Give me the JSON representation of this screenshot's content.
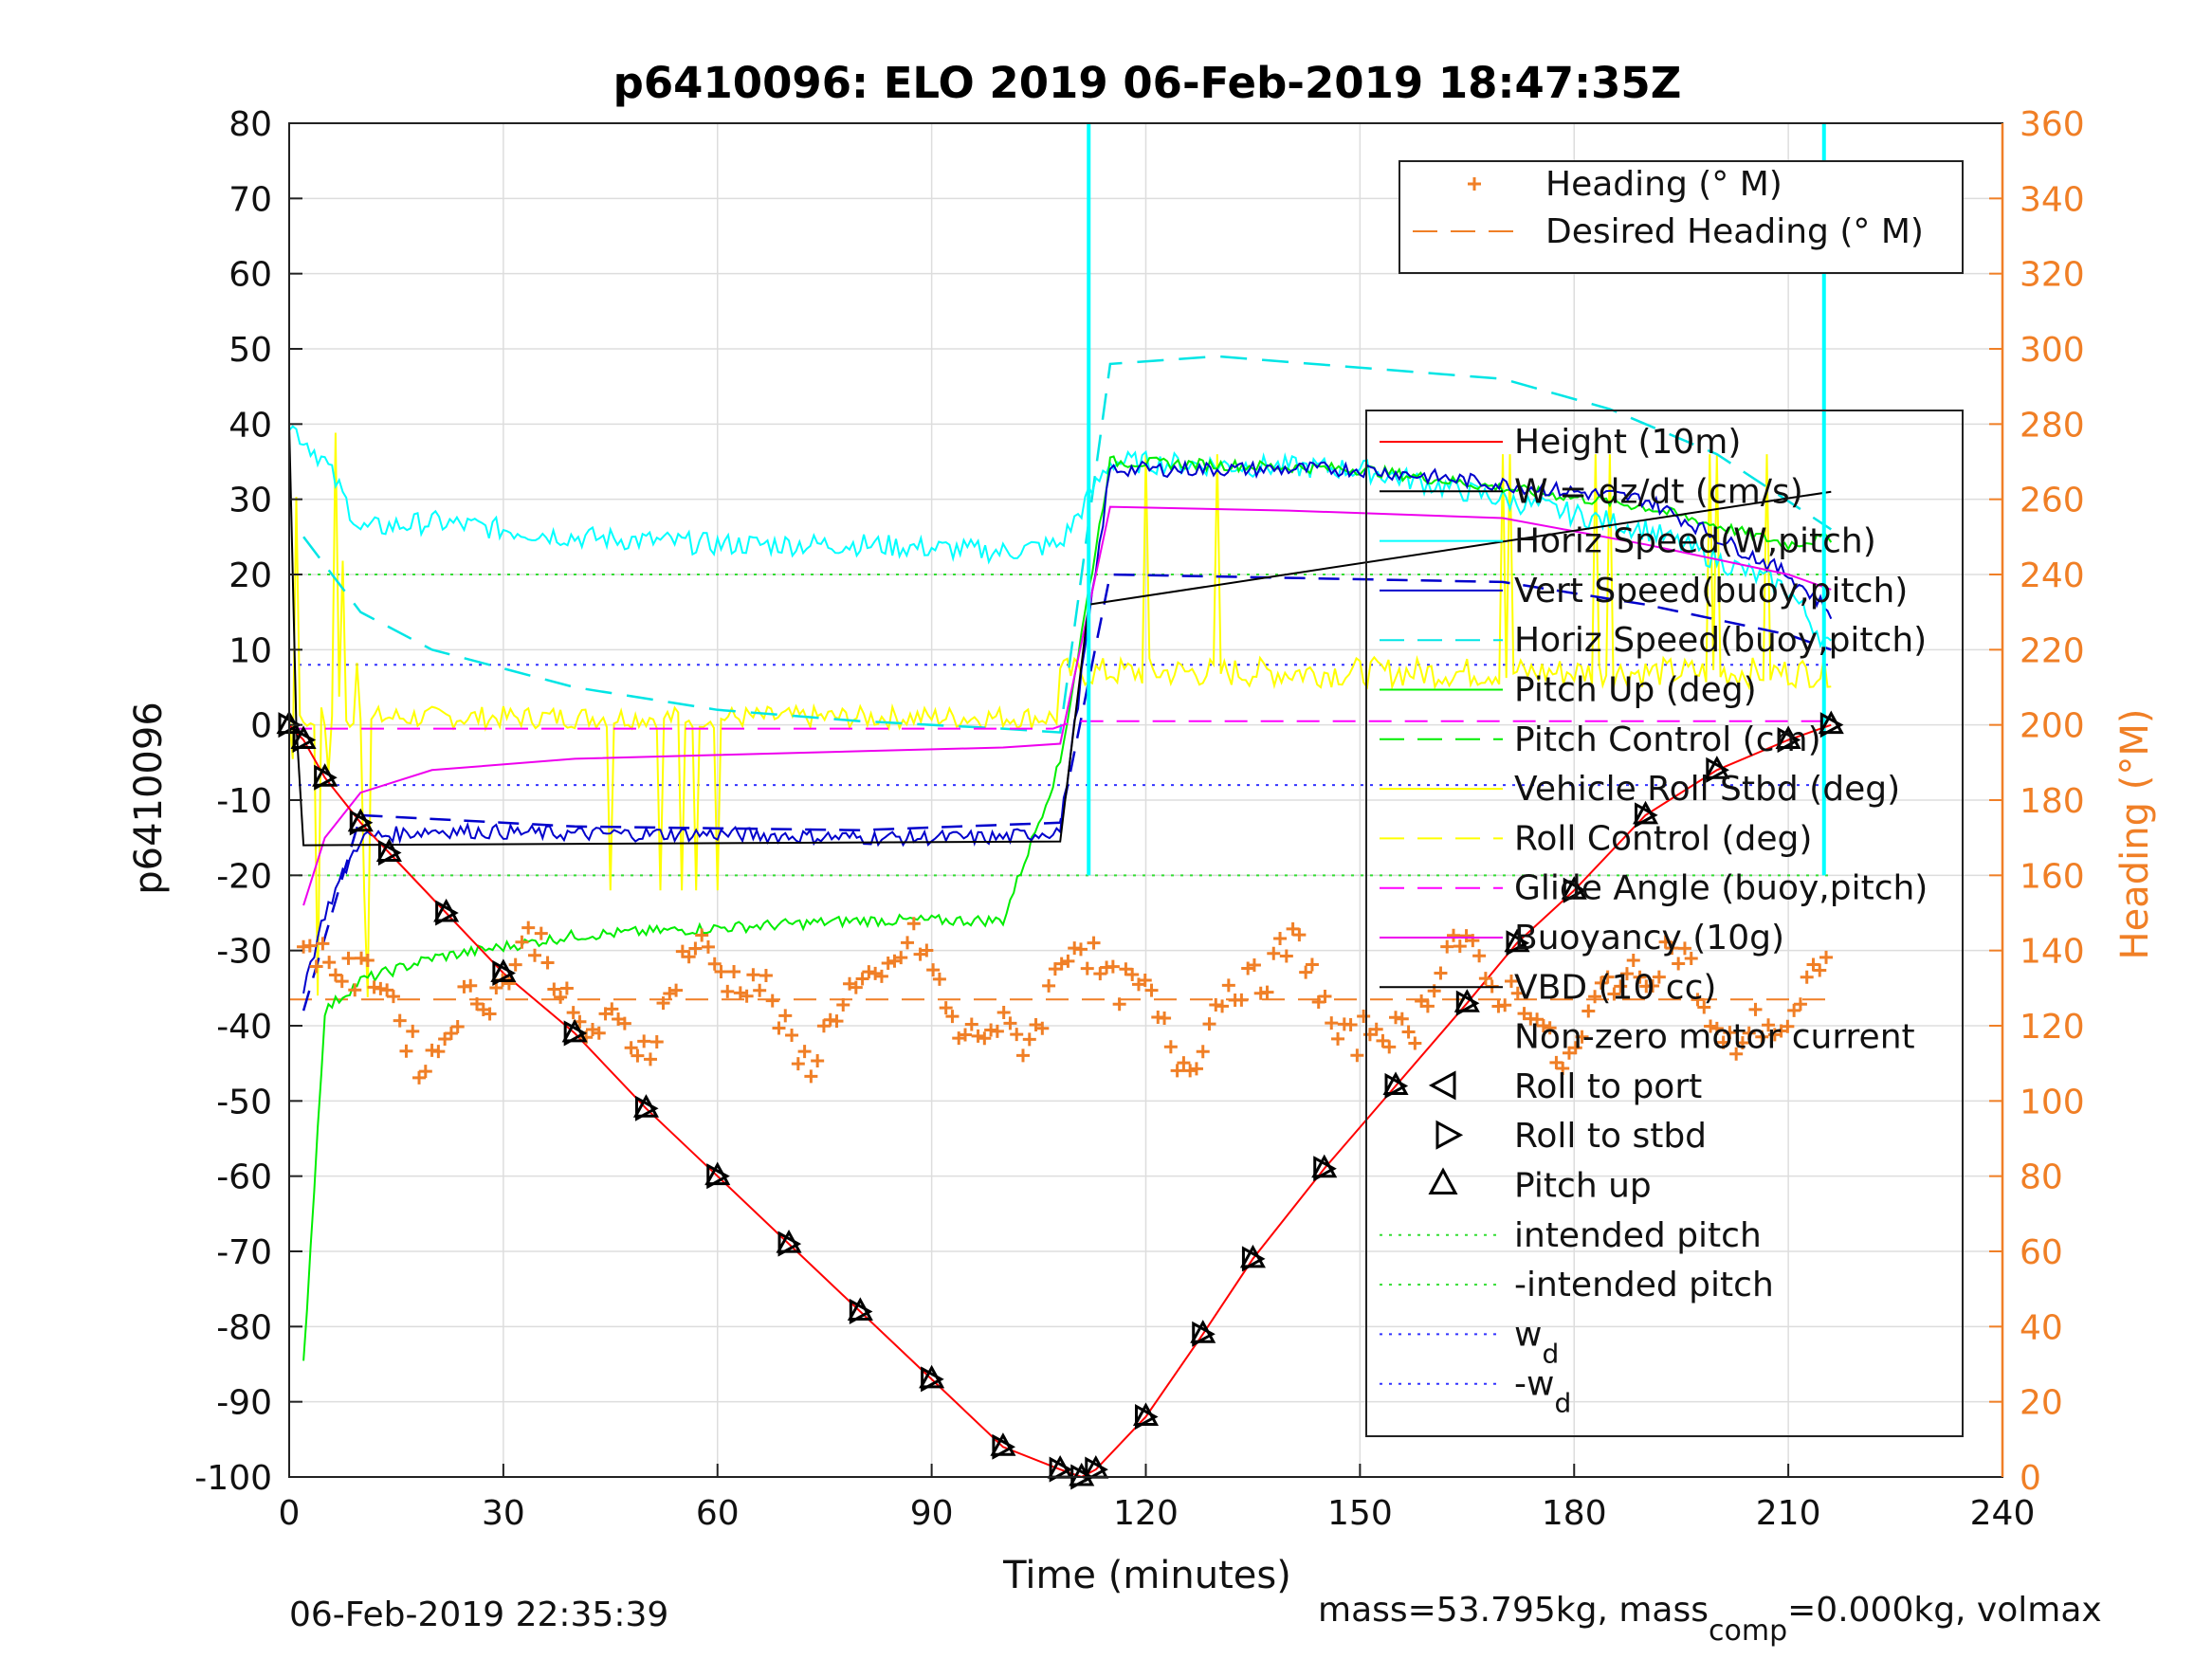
{
  "chart_data": {
    "type": "line",
    "title": "p6410096: ELO 2019 06-Feb-2019 18:47:35Z",
    "xlabel": "Time (minutes)",
    "ylabel": "p6410096",
    "y2label": "Heading (°M)",
    "xlim": [
      0,
      240
    ],
    "ylim": [
      -100,
      80
    ],
    "y2lim": [
      0,
      360
    ],
    "xticks": [
      "0",
      "30",
      "60",
      "90",
      "120",
      "150",
      "180",
      "210",
      "240"
    ],
    "yticks": [
      "80",
      "70",
      "60",
      "50",
      "40",
      "30",
      "20",
      "10",
      "0",
      "-10",
      "-20",
      "-30",
      "-40",
      "-50",
      "-60",
      "-70",
      "-80",
      "-90",
      "-100"
    ],
    "y2ticks": [
      "360",
      "340",
      "320",
      "300",
      "280",
      "260",
      "240",
      "220",
      "200",
      "180",
      "160",
      "140",
      "120",
      "100",
      "80",
      "60",
      "40",
      "20",
      "0"
    ],
    "grid": true,
    "colors": {
      "height": "#ff0000",
      "w": "#000000",
      "horiz_speed": "#00ffff",
      "vert_speed": "#0000cc",
      "horiz_speed_buoy": "#00e5e5",
      "pitch": "#00ee00",
      "roll": "#ffff00",
      "glide": "#ff00ff",
      "buoyancy": "#ee00ee",
      "vbd": "#000000",
      "heading": "#f07f26"
    },
    "legend_heading": [
      "Heading (° M)",
      "Desired Heading (° M)"
    ],
    "legend_main": [
      "Height (10m)",
      "W = dz/dt (cm/s)",
      "Horiz Speed(W,pitch)",
      "Vert Speed(buoy,pitch)",
      "Horiz Speed(buoy,pitch)",
      "Pitch Up (deg)",
      "Pitch Control (cm)",
      "Vehicle Roll Stbd (deg)",
      "Roll Control (deg)",
      "Glide Angle (buoy,pitch)",
      "Buoyancy (10g)",
      "VBD (10 cc)",
      "Non-zero motor current",
      "Roll to port",
      "Roll to stbd",
      "Pitch up",
      "intended pitch",
      "-intended pitch",
      "w",
      "-w"
    ],
    "legend_sub": "d",
    "series": [
      {
        "name": "Height (10m)",
        "x": [
          0,
          2,
          5,
          10,
          14,
          22,
          30,
          40,
          50,
          60,
          70,
          80,
          90,
          100,
          108,
          111,
          113,
          120,
          128,
          135,
          145,
          155,
          165,
          172,
          180,
          190,
          200,
          210,
          216
        ],
        "y": [
          0,
          -2,
          -7,
          -13,
          -17,
          -25,
          -33,
          -41,
          -51,
          -60,
          -69,
          -78,
          -87,
          -96,
          -99,
          -100,
          -99,
          -92,
          -81,
          -71,
          -59,
          -48,
          -37,
          -29,
          -22,
          -12,
          -6,
          -2,
          0
        ]
      },
      {
        "name": "VBD (10 cc)",
        "x": [
          0,
          1,
          2,
          108,
          112,
          216
        ],
        "y": [
          40,
          0,
          -16,
          -15.5,
          16,
          31
        ]
      },
      {
        "name": "Buoyancy (10g)",
        "x": [
          2,
          5,
          10,
          20,
          40,
          60,
          80,
          100,
          108,
          115,
          140,
          170,
          190,
          210,
          216
        ],
        "y": [
          -24,
          -15,
          -9,
          -6,
          -4.5,
          -4,
          -3.5,
          -3,
          -2.5,
          29,
          28.5,
          27.5,
          24,
          20,
          18
        ]
      },
      {
        "name": "Glide Angle (buoy,pitch)",
        "x": [
          0,
          107,
          110,
          216
        ],
        "y": [
          -0.5,
          -0.5,
          0.5,
          0.5
        ]
      },
      {
        "name": "Horiz Speed(buoy,pitch)",
        "x": [
          2,
          10,
          20,
          40,
          60,
          80,
          100,
          108,
          115,
          130,
          170,
          185,
          200,
          216
        ],
        "y": [
          25,
          15,
          10,
          5,
          2,
          0.5,
          -0.5,
          -1,
          48,
          49,
          46,
          42,
          36,
          26
        ]
      },
      {
        "name": "Vert Speed(buoy,pitch)",
        "x": [
          2,
          10,
          40,
          80,
          108,
          115,
          170,
          190,
          210,
          216
        ],
        "y": [
          -38,
          -12,
          -13.5,
          -14,
          -13,
          20,
          19,
          16,
          12,
          10
        ]
      },
      {
        "name": "Horiz Speed(W,pitch)",
        "x": [
          0,
          5,
          10,
          20,
          40,
          60,
          80,
          100,
          108,
          115,
          150,
          190,
          210,
          216
        ],
        "y": [
          40,
          35,
          26,
          27,
          25,
          24,
          24,
          23,
          24,
          35,
          34,
          26,
          18,
          10
        ]
      },
      {
        "name": "Pitch Up (deg)",
        "x": [
          2,
          5,
          10,
          20,
          40,
          60,
          80,
          100,
          108,
          115,
          150,
          190,
          210,
          216
        ],
        "y": [
          -85,
          -38,
          -34,
          -31,
          -28,
          -27,
          -26,
          -26,
          -5,
          35,
          34,
          29,
          24,
          25
        ]
      },
      {
        "name": "W = dz/dt (cm/s)",
        "x": [
          2,
          5,
          10,
          20,
          40,
          60,
          80,
          100,
          108,
          115,
          150,
          190,
          210,
          216
        ],
        "y": [
          -35,
          -25,
          -15,
          -14,
          -14.5,
          -14.5,
          -15,
          -15,
          -14,
          34,
          34,
          30,
          20,
          15
        ]
      }
    ],
    "reference_lines": [
      {
        "name": "intended pitch",
        "y": 20
      },
      {
        "name": "-intended pitch",
        "y": -20
      },
      {
        "name": "w_d",
        "y": 8
      },
      {
        "name": "-w_d",
        "y": -8
      },
      {
        "name": "Desired Heading (° M)",
        "y2": 127
      }
    ],
    "heading": {
      "mean_deg": 127,
      "min_deg": 95,
      "max_deg": 150,
      "x_range": [
        2,
        216
      ]
    }
  },
  "footer": {
    "date": "06-Feb-2019 22:35:39",
    "mass_prefix": "mass=53.795kg, mass",
    "mass_sub": "comp",
    "mass_suffix": "=0.000kg, volmax"
  }
}
